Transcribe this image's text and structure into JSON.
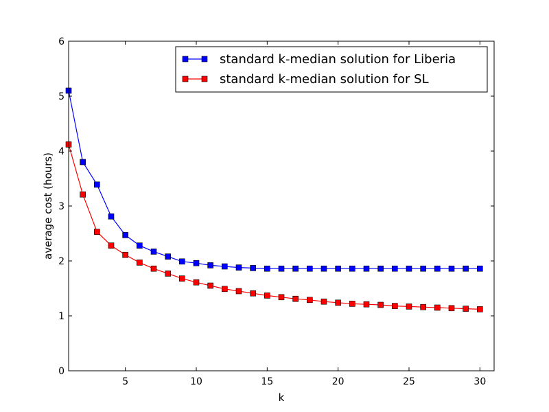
{
  "chart_data": {
    "type": "line",
    "title": "",
    "xlabel": "k",
    "ylabel": "average cost (hours)",
    "xlim": [
      1,
      31
    ],
    "ylim": [
      0,
      6
    ],
    "xticks": [
      5,
      10,
      15,
      20,
      25,
      30
    ],
    "yticks": [
      0,
      1,
      2,
      3,
      4,
      5,
      6
    ],
    "grid": false,
    "legend_position": "top-right",
    "x": [
      1,
      2,
      3,
      4,
      5,
      6,
      7,
      8,
      9,
      10,
      11,
      12,
      13,
      14,
      15,
      16,
      17,
      18,
      19,
      20,
      21,
      22,
      23,
      24,
      25,
      26,
      27,
      28,
      29,
      30
    ],
    "series": [
      {
        "name": "standard k-median solution for Liberia",
        "color": "#0000ff",
        "marker": "square",
        "values": [
          5.1,
          3.8,
          3.39,
          2.81,
          2.47,
          2.28,
          2.17,
          2.08,
          1.99,
          1.96,
          1.92,
          1.9,
          1.88,
          1.87,
          1.86,
          1.86,
          1.86,
          1.86,
          1.86,
          1.86,
          1.86,
          1.86,
          1.86,
          1.86,
          1.86,
          1.86,
          1.86,
          1.86,
          1.86,
          1.86
        ]
      },
      {
        "name": "standard k-median solution for SL",
        "color": "#ff0000",
        "marker": "square",
        "values": [
          4.12,
          3.21,
          2.53,
          2.28,
          2.11,
          1.97,
          1.86,
          1.77,
          1.68,
          1.61,
          1.55,
          1.49,
          1.45,
          1.41,
          1.37,
          1.34,
          1.31,
          1.29,
          1.26,
          1.24,
          1.22,
          1.21,
          1.2,
          1.18,
          1.17,
          1.16,
          1.15,
          1.14,
          1.13,
          1.12
        ]
      }
    ]
  }
}
